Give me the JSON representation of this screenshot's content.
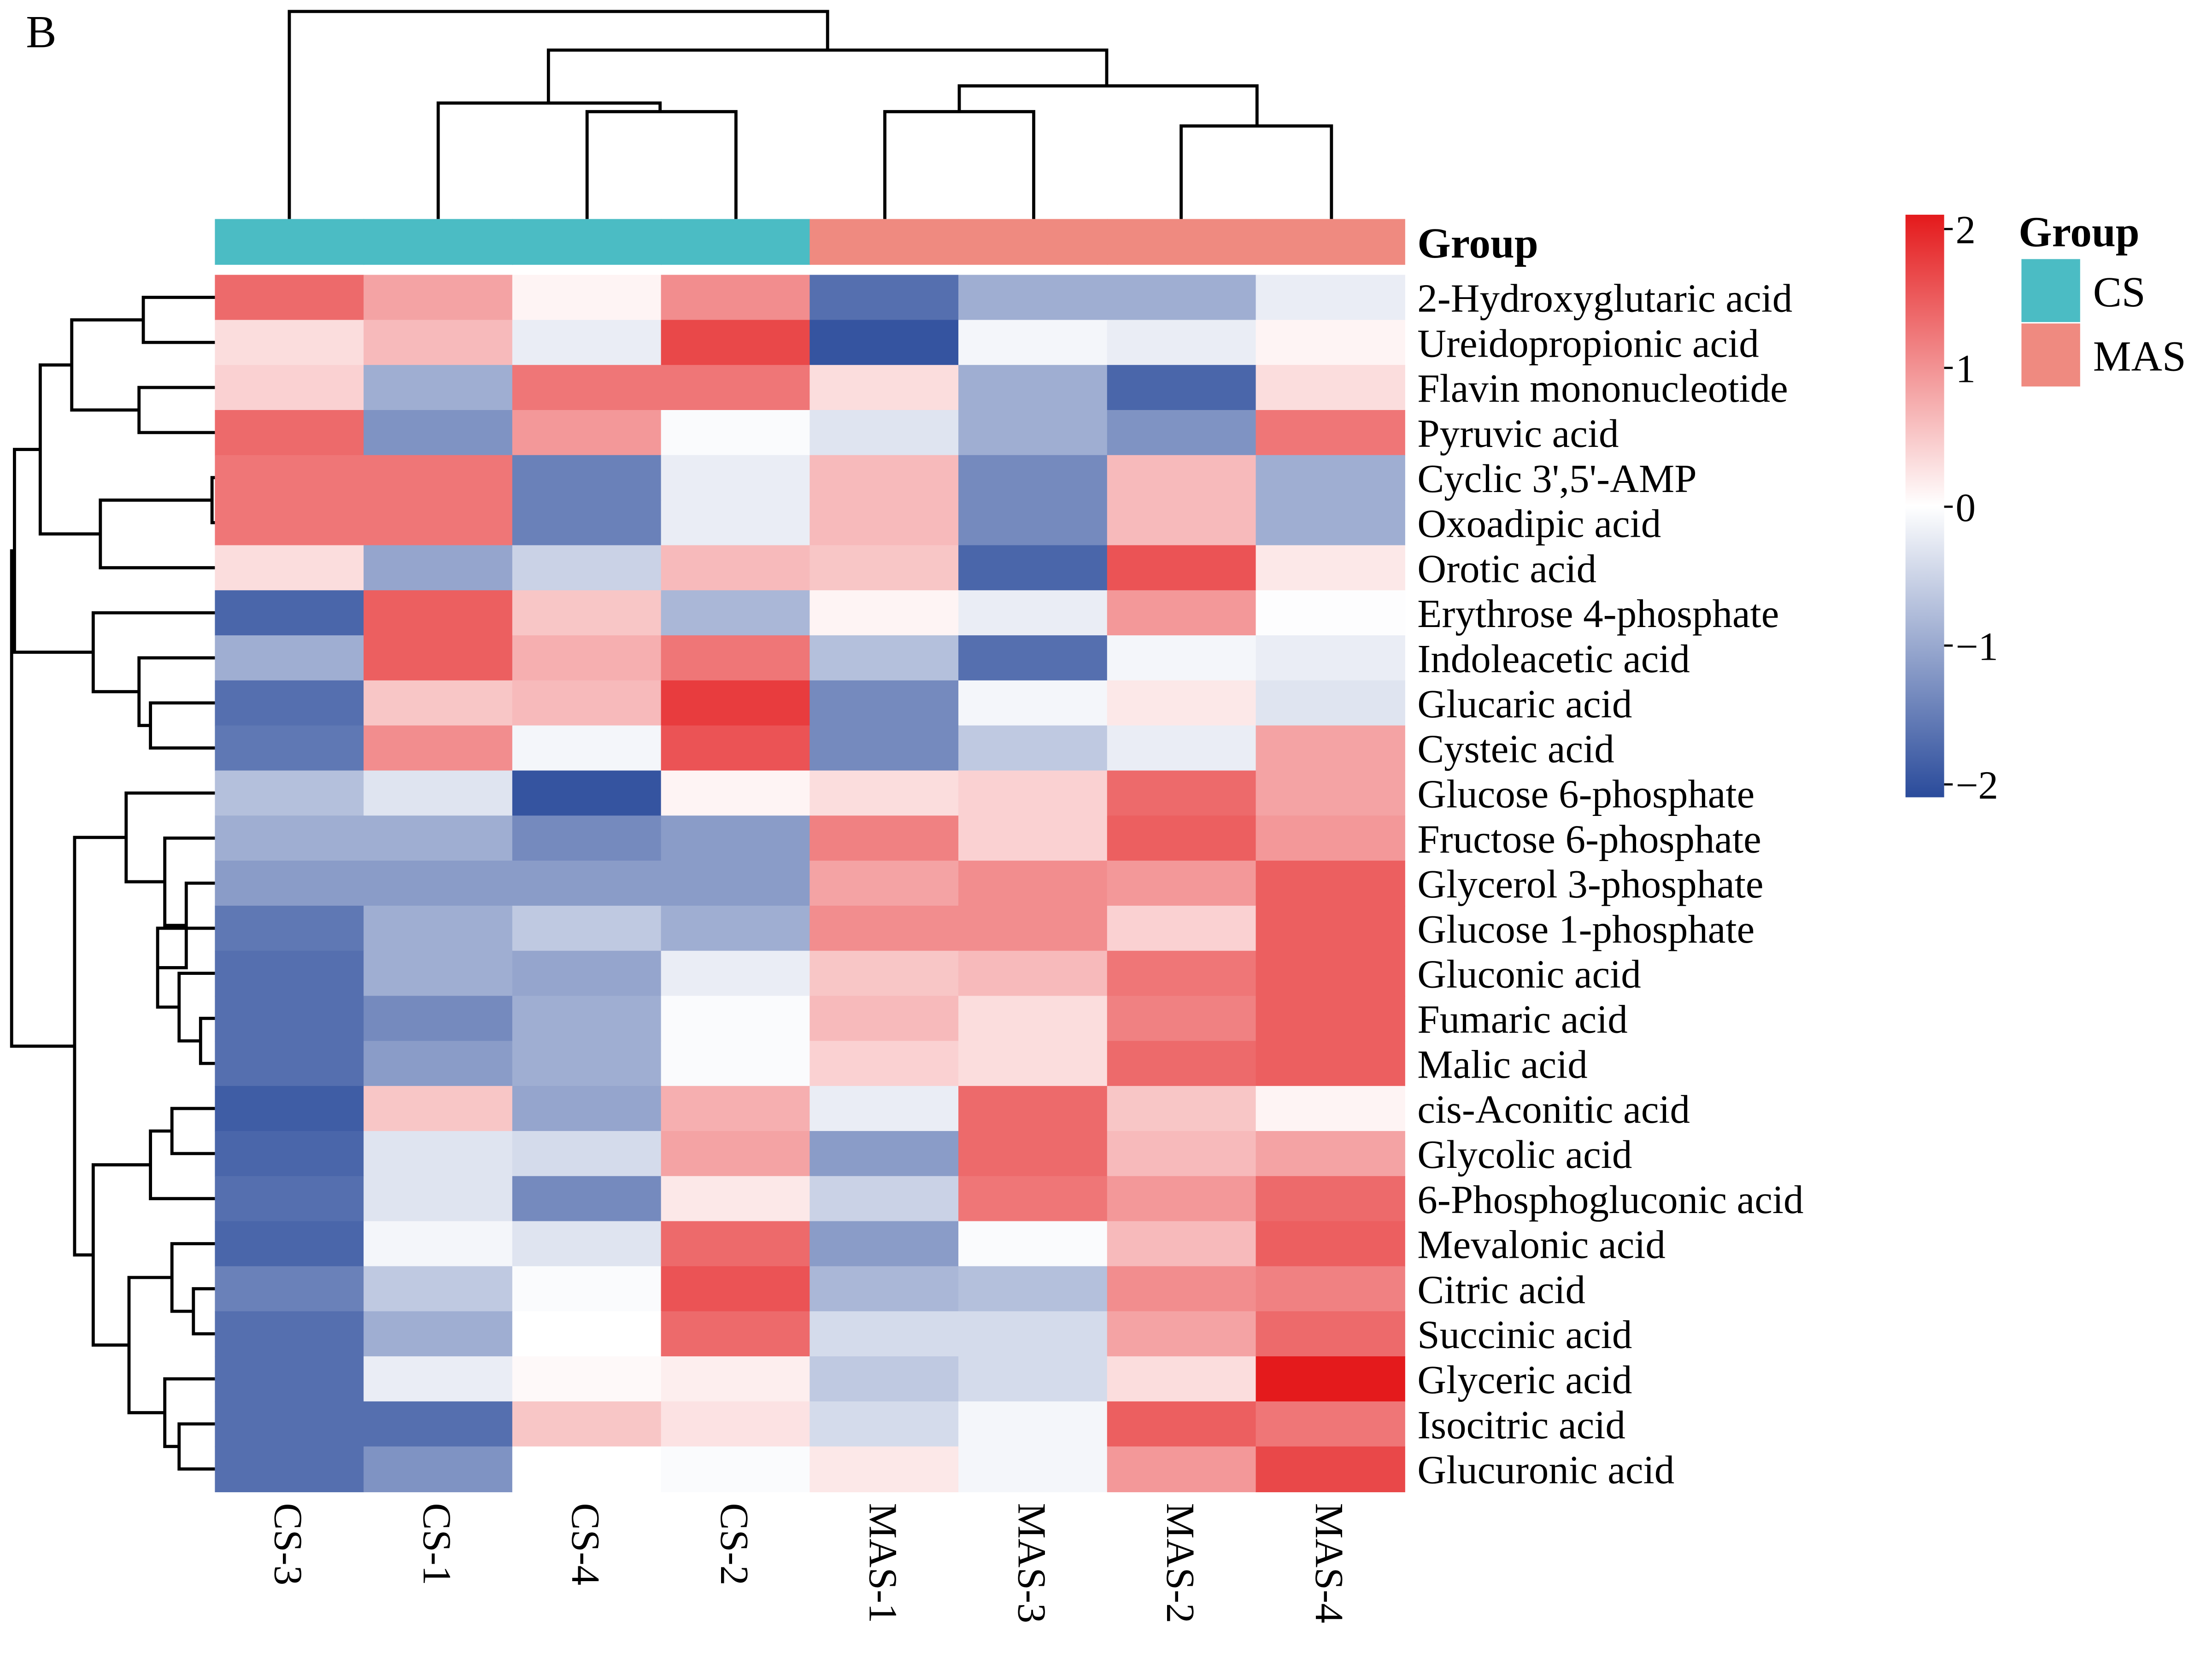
{
  "panel_label": "B",
  "chart_data": {
    "type": "heatmap",
    "title": "",
    "columns": [
      "CS-3",
      "CS-1",
      "CS-4",
      "CS-2",
      "MAS-1",
      "MAS-3",
      "MAS-2",
      "MAS-4"
    ],
    "column_groups": [
      "CS",
      "CS",
      "CS",
      "CS",
      "MAS",
      "MAS",
      "MAS",
      "MAS"
    ],
    "rows": [
      "2-Hydroxyglutaric acid",
      "Ureidopropionic acid",
      "Flavin mononucleotide",
      "Pyruvic acid",
      "Cyclic 3',5'-AMP",
      "Oxoadipic acid",
      "Orotic acid",
      "Erythrose 4-phosphate",
      "Indoleacetic acid",
      "Glucaric acid",
      "Cysteic acid",
      "Glucose 6-phosphate",
      "Fructose 6-phosphate",
      "Glycerol 3-phosphate",
      "Glucose 1-phosphate",
      "Gluconic acid",
      "Fumaric acid",
      "Malic acid",
      "cis-Aconitic acid",
      "Glycolic acid",
      "6-Phosphogluconic acid",
      "Mevalonic acid",
      "Citric acid",
      "Succinic acid",
      "Glyceric acid",
      "Isocitric acid",
      "Glucuronic acid"
    ],
    "values": [
      [
        1.3,
        0.8,
        0.1,
        1.0,
        -1.6,
        -0.9,
        -0.9,
        -0.2
      ],
      [
        0.3,
        0.6,
        -0.2,
        1.6,
        -1.9,
        -0.1,
        -0.2,
        0.1
      ],
      [
        0.4,
        -0.9,
        1.2,
        1.2,
        0.3,
        -0.9,
        -1.7,
        0.3
      ],
      [
        1.3,
        -1.2,
        0.9,
        -0.05,
        -0.3,
        -0.9,
        -1.2,
        1.2
      ],
      [
        1.2,
        1.2,
        -1.4,
        -0.2,
        0.6,
        -1.3,
        0.6,
        -0.9
      ],
      [
        1.2,
        1.2,
        -1.4,
        -0.2,
        0.6,
        -1.3,
        0.6,
        -0.9
      ],
      [
        0.3,
        -1.0,
        -0.5,
        0.6,
        0.5,
        -1.7,
        1.5,
        0.2
      ],
      [
        -1.7,
        1.4,
        0.5,
        -0.8,
        0.1,
        -0.2,
        0.9,
        -0.02
      ],
      [
        -0.9,
        1.4,
        0.7,
        1.2,
        -0.7,
        -1.6,
        -0.1,
        -0.2
      ],
      [
        -1.6,
        0.5,
        0.6,
        1.7,
        -1.3,
        -0.1,
        0.2,
        -0.3
      ],
      [
        -1.5,
        1.0,
        -0.1,
        1.5,
        -1.3,
        -0.6,
        -0.2,
        0.8
      ],
      [
        -0.7,
        -0.3,
        -1.9,
        0.1,
        0.3,
        0.4,
        1.3,
        0.8
      ],
      [
        -0.9,
        -0.9,
        -1.3,
        -1.1,
        1.1,
        0.4,
        1.4,
        0.9
      ],
      [
        -1.1,
        -1.1,
        -1.1,
        -1.1,
        0.8,
        1.0,
        0.9,
        1.4
      ],
      [
        -1.5,
        -0.9,
        -0.6,
        -0.9,
        1.0,
        1.0,
        0.4,
        1.4
      ],
      [
        -1.6,
        -0.9,
        -1.0,
        -0.2,
        0.5,
        0.6,
        1.2,
        1.4
      ],
      [
        -1.6,
        -1.3,
        -0.9,
        -0.05,
        0.6,
        0.3,
        1.1,
        1.4
      ],
      [
        -1.6,
        -1.1,
        -0.9,
        -0.05,
        0.4,
        0.3,
        1.3,
        1.4
      ],
      [
        -1.8,
        0.5,
        -1.0,
        0.7,
        -0.2,
        1.3,
        0.5,
        0.1
      ],
      [
        -1.7,
        -0.3,
        -0.4,
        0.8,
        -1.1,
        1.3,
        0.6,
        0.8
      ],
      [
        -1.6,
        -0.3,
        -1.3,
        0.2,
        -0.5,
        1.2,
        0.9,
        1.3
      ],
      [
        -1.7,
        -0.1,
        -0.3,
        1.3,
        -1.1,
        -0.05,
        0.6,
        1.4
      ],
      [
        -1.4,
        -0.6,
        -0.05,
        1.5,
        -0.8,
        -0.7,
        1.0,
        1.1
      ],
      [
        -1.6,
        -0.9,
        0.0,
        1.3,
        -0.4,
        -0.4,
        0.8,
        1.3
      ],
      [
        -1.6,
        -0.2,
        0.05,
        0.15,
        -0.6,
        -0.4,
        0.3,
        2.0
      ],
      [
        -1.6,
        -1.6,
        0.5,
        0.25,
        -0.4,
        -0.1,
        1.4,
        1.2
      ],
      [
        -1.6,
        -1.2,
        0.0,
        -0.05,
        0.2,
        -0.1,
        0.9,
        1.6
      ]
    ],
    "color_scale": {
      "min": -2,
      "max": 2,
      "low": "#2A4B9B",
      "mid": "#FFFFFF",
      "high": "#E41A1C"
    },
    "colorbar_ticks": [
      "2",
      "1",
      "0",
      "−1",
      "−2"
    ],
    "group_annotation_label": "Group",
    "legend": {
      "title": "Group",
      "entries": [
        {
          "label": "CS",
          "color": "#4BBCC4"
        },
        {
          "label": "MAS",
          "color": "#EF8A80"
        }
      ],
      "placement": "right"
    }
  }
}
